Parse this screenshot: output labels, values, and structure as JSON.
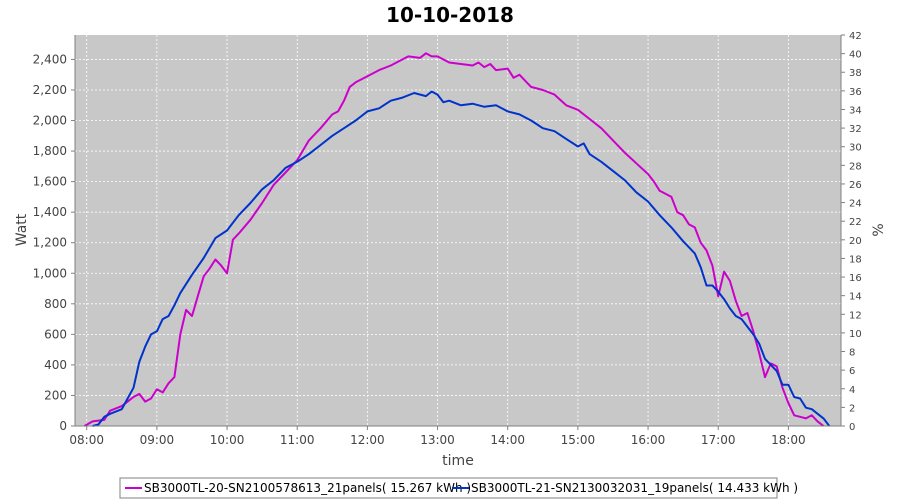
{
  "chart_data": {
    "type": "line",
    "title": "10-10-2018",
    "xlabel": "time",
    "ylabel": "Watt",
    "y2label": "%",
    "xlim": [
      7.833,
      18.75
    ],
    "ylim": [
      0,
      2560
    ],
    "y2lim": [
      0,
      42
    ],
    "x_ticks": [
      "08:00",
      "09:00",
      "10:00",
      "11:00",
      "12:00",
      "13:00",
      "14:00",
      "15:00",
      "16:00",
      "17:00",
      "18:00"
    ],
    "y_ticks": [
      "0",
      "200",
      "400",
      "600",
      "800",
      "1,000",
      "1,200",
      "1,400",
      "1,600",
      "1,800",
      "2,000",
      "2,200",
      "2,400"
    ],
    "y2_ticks": [
      "0",
      "2",
      "4",
      "6",
      "8",
      "10",
      "12",
      "14",
      "16",
      "18",
      "20",
      "22",
      "24",
      "26",
      "28",
      "30",
      "32",
      "34",
      "36",
      "38",
      "40",
      "42"
    ],
    "grid": true,
    "legend_position": "bottom",
    "colors": {
      "plot_background": "#c8c8c8",
      "grid": "#ffffff"
    },
    "series": [
      {
        "name": "SB3000TL-20-SN2100578613_21panels( 15.267 kWh )",
        "color": "#cc00cc",
        "points": [
          [
            "07:58",
            0
          ],
          [
            "08:05",
            30
          ],
          [
            "08:15",
            40
          ],
          [
            "08:20",
            100
          ],
          [
            "08:30",
            130
          ],
          [
            "08:40",
            190
          ],
          [
            "08:45",
            210
          ],
          [
            "08:50",
            160
          ],
          [
            "08:55",
            180
          ],
          [
            "09:00",
            240
          ],
          [
            "09:05",
            220
          ],
          [
            "09:10",
            280
          ],
          [
            "09:15",
            320
          ],
          [
            "09:20",
            600
          ],
          [
            "09:25",
            760
          ],
          [
            "09:30",
            720
          ],
          [
            "09:35",
            850
          ],
          [
            "09:40",
            980
          ],
          [
            "09:45",
            1030
          ],
          [
            "09:50",
            1090
          ],
          [
            "09:55",
            1050
          ],
          [
            "10:00",
            1000
          ],
          [
            "10:05",
            1220
          ],
          [
            "10:10",
            1260
          ],
          [
            "10:20",
            1350
          ],
          [
            "10:30",
            1460
          ],
          [
            "10:40",
            1580
          ],
          [
            "10:50",
            1660
          ],
          [
            "11:00",
            1740
          ],
          [
            "11:10",
            1870
          ],
          [
            "11:20",
            1950
          ],
          [
            "11:30",
            2040
          ],
          [
            "11:35",
            2060
          ],
          [
            "11:40",
            2130
          ],
          [
            "11:45",
            2220
          ],
          [
            "11:50",
            2250
          ],
          [
            "12:00",
            2290
          ],
          [
            "12:10",
            2330
          ],
          [
            "12:20",
            2360
          ],
          [
            "12:30",
            2400
          ],
          [
            "12:35",
            2420
          ],
          [
            "12:45",
            2410
          ],
          [
            "12:50",
            2440
          ],
          [
            "12:55",
            2420
          ],
          [
            "13:00",
            2420
          ],
          [
            "13:10",
            2380
          ],
          [
            "13:20",
            2370
          ],
          [
            "13:30",
            2360
          ],
          [
            "13:35",
            2380
          ],
          [
            "13:40",
            2350
          ],
          [
            "13:45",
            2370
          ],
          [
            "13:50",
            2330
          ],
          [
            "14:00",
            2340
          ],
          [
            "14:05",
            2280
          ],
          [
            "14:10",
            2300
          ],
          [
            "14:20",
            2220
          ],
          [
            "14:30",
            2200
          ],
          [
            "14:40",
            2170
          ],
          [
            "14:50",
            2100
          ],
          [
            "15:00",
            2070
          ],
          [
            "15:10",
            2010
          ],
          [
            "15:20",
            1950
          ],
          [
            "15:30",
            1870
          ],
          [
            "15:40",
            1790
          ],
          [
            "15:50",
            1720
          ],
          [
            "16:00",
            1650
          ],
          [
            "16:05",
            1600
          ],
          [
            "16:10",
            1540
          ],
          [
            "16:20",
            1500
          ],
          [
            "16:25",
            1400
          ],
          [
            "16:30",
            1380
          ],
          [
            "16:35",
            1320
          ],
          [
            "16:40",
            1300
          ],
          [
            "16:45",
            1200
          ],
          [
            "16:50",
            1150
          ],
          [
            "16:55",
            1050
          ],
          [
            "17:00",
            850
          ],
          [
            "17:05",
            1010
          ],
          [
            "17:10",
            950
          ],
          [
            "17:15",
            820
          ],
          [
            "17:20",
            720
          ],
          [
            "17:25",
            740
          ],
          [
            "17:30",
            620
          ],
          [
            "17:35",
            480
          ],
          [
            "17:40",
            320
          ],
          [
            "17:45",
            410
          ],
          [
            "17:50",
            390
          ],
          [
            "17:55",
            250
          ],
          [
            "18:00",
            150
          ],
          [
            "18:05",
            70
          ],
          [
            "18:10",
            60
          ],
          [
            "18:15",
            50
          ],
          [
            "18:20",
            70
          ],
          [
            "18:25",
            30
          ],
          [
            "18:30",
            0
          ]
        ]
      },
      {
        "name": "SB3000TL-21-SN2130032031_19panels( 14.433 kWh )",
        "color": "#0033cc",
        "points": [
          [
            "08:05",
            0
          ],
          [
            "08:10",
            10
          ],
          [
            "08:15",
            60
          ],
          [
            "08:20",
            80
          ],
          [
            "08:30",
            110
          ],
          [
            "08:35",
            180
          ],
          [
            "08:40",
            250
          ],
          [
            "08:45",
            420
          ],
          [
            "08:50",
            520
          ],
          [
            "08:55",
            600
          ],
          [
            "09:00",
            620
          ],
          [
            "09:05",
            700
          ],
          [
            "09:10",
            720
          ],
          [
            "09:15",
            790
          ],
          [
            "09:20",
            870
          ],
          [
            "09:30",
            990
          ],
          [
            "09:40",
            1100
          ],
          [
            "09:50",
            1230
          ],
          [
            "10:00",
            1280
          ],
          [
            "10:10",
            1380
          ],
          [
            "10:20",
            1460
          ],
          [
            "10:30",
            1550
          ],
          [
            "10:40",
            1610
          ],
          [
            "10:50",
            1690
          ],
          [
            "11:00",
            1730
          ],
          [
            "11:10",
            1780
          ],
          [
            "11:20",
            1840
          ],
          [
            "11:30",
            1900
          ],
          [
            "11:40",
            1950
          ],
          [
            "11:50",
            2000
          ],
          [
            "12:00",
            2060
          ],
          [
            "12:10",
            2080
          ],
          [
            "12:20",
            2130
          ],
          [
            "12:30",
            2150
          ],
          [
            "12:40",
            2180
          ],
          [
            "12:50",
            2160
          ],
          [
            "12:55",
            2190
          ],
          [
            "13:00",
            2170
          ],
          [
            "13:05",
            2120
          ],
          [
            "13:10",
            2130
          ],
          [
            "13:20",
            2100
          ],
          [
            "13:30",
            2110
          ],
          [
            "13:40",
            2090
          ],
          [
            "13:50",
            2100
          ],
          [
            "14:00",
            2060
          ],
          [
            "14:10",
            2040
          ],
          [
            "14:20",
            2000
          ],
          [
            "14:30",
            1950
          ],
          [
            "14:40",
            1930
          ],
          [
            "14:50",
            1880
          ],
          [
            "15:00",
            1830
          ],
          [
            "15:05",
            1850
          ],
          [
            "15:10",
            1780
          ],
          [
            "15:20",
            1730
          ],
          [
            "15:30",
            1670
          ],
          [
            "15:40",
            1610
          ],
          [
            "15:50",
            1530
          ],
          [
            "16:00",
            1470
          ],
          [
            "16:10",
            1380
          ],
          [
            "16:20",
            1300
          ],
          [
            "16:30",
            1210
          ],
          [
            "16:40",
            1130
          ],
          [
            "16:45",
            1040
          ],
          [
            "16:50",
            920
          ],
          [
            "16:55",
            920
          ],
          [
            "17:00",
            880
          ],
          [
            "17:05",
            830
          ],
          [
            "17:10",
            770
          ],
          [
            "17:15",
            720
          ],
          [
            "17:20",
            700
          ],
          [
            "17:30",
            600
          ],
          [
            "17:35",
            540
          ],
          [
            "17:40",
            440
          ],
          [
            "17:45",
            400
          ],
          [
            "17:50",
            360
          ],
          [
            "17:55",
            270
          ],
          [
            "18:00",
            270
          ],
          [
            "18:05",
            190
          ],
          [
            "18:10",
            180
          ],
          [
            "18:15",
            120
          ],
          [
            "18:20",
            110
          ],
          [
            "18:25",
            80
          ],
          [
            "18:30",
            50
          ],
          [
            "18:35",
            0
          ]
        ]
      }
    ]
  }
}
